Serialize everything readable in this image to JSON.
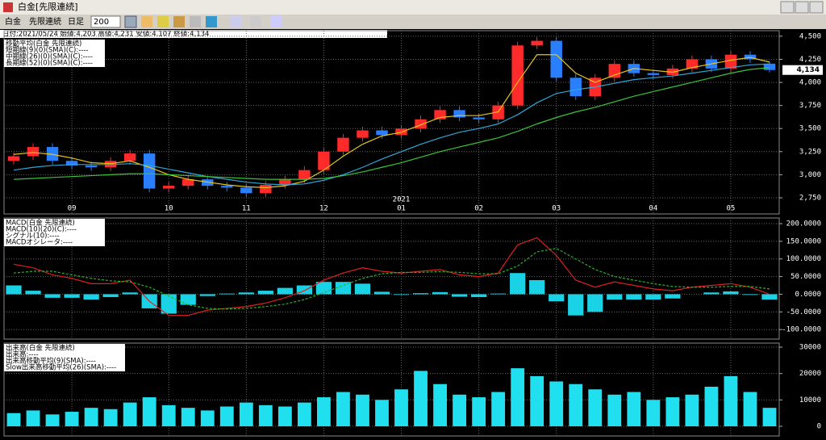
{
  "window": {
    "title": "白金[先限連続]"
  },
  "toolbar": {
    "commodity": "白金",
    "contract": "先限連続",
    "period": "日足",
    "count": "200"
  },
  "info": "日付:2021/05/24 始値:4,203 高値:4,231 安値:4,107 終値:4,134",
  "chart_data": [
    {
      "type": "candlestick",
      "title": "移動平均(白金 先限連続)",
      "categories": [
        null,
        null,
        null,
        "09",
        null,
        null,
        null,
        null,
        "10",
        null,
        null,
        null,
        "11",
        null,
        null,
        null,
        "12",
        null,
        null,
        null,
        "01",
        null,
        null,
        null,
        "02",
        null,
        null,
        null,
        "03",
        null,
        null,
        null,
        null,
        "04",
        null,
        null,
        null,
        "05",
        null,
        null
      ],
      "year_label": "2021",
      "open": [
        3150,
        3200,
        3300,
        3150,
        3100,
        3080,
        3150,
        3230,
        2850,
        2880,
        2950,
        2880,
        2860,
        2800,
        2890,
        2950,
        3050,
        3250,
        3400,
        3480,
        3430,
        3500,
        3600,
        3700,
        3620,
        3600,
        3750,
        4400,
        4450,
        4050,
        3850,
        4050,
        4200,
        4100,
        4080,
        4150,
        4250,
        4150,
        4300,
        4203
      ],
      "high": [
        3240,
        3340,
        3340,
        3190,
        3140,
        3190,
        3270,
        3270,
        2920,
        2990,
        2990,
        2920,
        2900,
        2930,
        2990,
        3090,
        3290,
        3440,
        3520,
        3520,
        3540,
        3640,
        3740,
        3740,
        3660,
        3790,
        4440,
        4490,
        4490,
        4090,
        4090,
        4240,
        4240,
        4140,
        4190,
        4290,
        4290,
        4340,
        4340,
        4231
      ],
      "low": [
        3110,
        3160,
        3110,
        3060,
        3040,
        3040,
        3110,
        2810,
        2810,
        2840,
        2840,
        2820,
        2760,
        2760,
        2850,
        2910,
        3010,
        3210,
        3360,
        3390,
        3390,
        3460,
        3560,
        3580,
        3560,
        3560,
        3710,
        4360,
        4010,
        3810,
        3810,
        4010,
        4060,
        4040,
        4040,
        4110,
        4110,
        4110,
        4210,
        4107
      ],
      "close": [
        3200,
        3300,
        3150,
        3100,
        3080,
        3150,
        3230,
        2850,
        2880,
        2950,
        2880,
        2860,
        2800,
        2890,
        2950,
        3050,
        3250,
        3400,
        3480,
        3430,
        3500,
        3600,
        3700,
        3620,
        3600,
        3750,
        4400,
        4450,
        4050,
        3850,
        4050,
        4200,
        4100,
        4080,
        4150,
        4250,
        4150,
        4300,
        4250,
        4134
      ],
      "up_color": "#ff2a2a",
      "down_color": "#2a7fff",
      "last_price_label": "4,134",
      "series": [
        {
          "name": "短期線(9)(0)(SMA)(C):----",
          "color": "#e6c619",
          "values": [
            3220,
            3240,
            3220,
            3180,
            3130,
            3120,
            3150,
            3080,
            3000,
            2950,
            2920,
            2890,
            2870,
            2860,
            2880,
            2930,
            3050,
            3200,
            3330,
            3420,
            3460,
            3540,
            3620,
            3640,
            3640,
            3680,
            4000,
            4300,
            4300,
            4100,
            4000,
            4080,
            4150,
            4130,
            4110,
            4160,
            4200,
            4240,
            4270,
            4220
          ]
        },
        {
          "name": "中期線(26)(0)(SMA)(C):----",
          "color": "#2fa7d8",
          "values": [
            3050,
            3080,
            3100,
            3110,
            3110,
            3110,
            3120,
            3100,
            3060,
            3020,
            2980,
            2950,
            2920,
            2900,
            2890,
            2900,
            2940,
            3000,
            3080,
            3170,
            3250,
            3330,
            3400,
            3460,
            3500,
            3550,
            3650,
            3780,
            3880,
            3920,
            3950,
            3990,
            4030,
            4050,
            4070,
            4100,
            4130,
            4160,
            4190,
            4200
          ]
        },
        {
          "name": "長期線(52)(0)(SMA)(C):----",
          "color": "#3ac43a",
          "values": [
            2950,
            2960,
            2970,
            2980,
            2990,
            3000,
            3010,
            3010,
            3000,
            2990,
            2980,
            2970,
            2960,
            2950,
            2950,
            2950,
            2960,
            2990,
            3030,
            3080,
            3130,
            3190,
            3250,
            3300,
            3350,
            3400,
            3470,
            3550,
            3620,
            3680,
            3730,
            3790,
            3850,
            3900,
            3950,
            4000,
            4050,
            4100,
            4140,
            4160
          ]
        }
      ],
      "ylim": [
        2575,
        4560
      ],
      "yticks": [
        {
          "value": 2750,
          "label": "2,750"
        },
        {
          "value": 3000,
          "label": "3,000"
        },
        {
          "value": 3250,
          "label": "3,250"
        },
        {
          "value": 3500,
          "label": "3,500"
        },
        {
          "value": 3750,
          "label": "3,750"
        },
        {
          "value": 4000,
          "label": "4,000"
        },
        {
          "value": 4250,
          "label": "4,250"
        },
        {
          "value": 4500,
          "label": "4,500"
        }
      ],
      "grid": true
    },
    {
      "type": "macd",
      "title": "MACD(白金 先限連続)",
      "series": [
        {
          "name": "MACD(10)(20)(C):----",
          "color": "#e02020",
          "values": [
            85,
            75,
            55,
            45,
            30,
            30,
            40,
            -20,
            -60,
            -60,
            -45,
            -40,
            -35,
            -25,
            -10,
            10,
            40,
            60,
            75,
            65,
            60,
            65,
            70,
            55,
            50,
            60,
            140,
            160,
            110,
            40,
            20,
            35,
            25,
            15,
            10,
            20,
            25,
            30,
            20,
            0
          ]
        },
        {
          "name": "シグナル(10):----",
          "color": "#28b428",
          "dashed": true,
          "values": [
            60,
            65,
            65,
            55,
            45,
            38,
            35,
            20,
            -5,
            -30,
            -40,
            -42,
            -40,
            -35,
            -28,
            -15,
            5,
            25,
            45,
            58,
            62,
            62,
            64,
            62,
            58,
            58,
            80,
            120,
            130,
            100,
            70,
            50,
            40,
            30,
            22,
            20,
            20,
            22,
            22,
            15
          ]
        }
      ],
      "histogram": {
        "name": "MACDオシレータ:----",
        "color": "#19d2e6",
        "values": [
          25,
          10,
          -10,
          -10,
          -15,
          -8,
          5,
          -40,
          -55,
          -30,
          -5,
          2,
          5,
          10,
          18,
          25,
          35,
          35,
          30,
          7,
          -2,
          3,
          6,
          -7,
          -8,
          2,
          60,
          40,
          -20,
          -60,
          -50,
          -15,
          -15,
          -15,
          -12,
          0,
          5,
          8,
          -2,
          -15
        ]
      },
      "ylim": [
        -127,
        216
      ],
      "yticks": [
        {
          "value": -100,
          "label": "-100.0000"
        },
        {
          "value": -50,
          "label": "-50.0000"
        },
        {
          "value": 0,
          "label": "0.0000"
        },
        {
          "value": 50,
          "label": "50.0000"
        },
        {
          "value": 100,
          "label": "100.0000"
        },
        {
          "value": 150,
          "label": "150.0000"
        },
        {
          "value": 200,
          "label": "200.0000"
        }
      ],
      "grid": true
    },
    {
      "type": "bar",
      "title": "出来高(白金 先限連続)",
      "series": [
        {
          "name": "出来高:----",
          "color": "#20e0f0",
          "values": [
            5000,
            6000,
            4500,
            5500,
            7000,
            6500,
            9000,
            11000,
            8000,
            7000,
            6000,
            7500,
            9000,
            8000,
            7500,
            9000,
            11000,
            13000,
            12000,
            10000,
            14000,
            21000,
            16000,
            12000,
            11000,
            13000,
            22000,
            19000,
            17000,
            16000,
            14000,
            12000,
            13000,
            10000,
            11000,
            12000,
            15000,
            19000,
            13000,
            7000
          ]
        }
      ],
      "indicator_labels": [
        "出来高移動平均(9)(SMA):----",
        "Slow出来高移動平均(26)(SMA):----"
      ],
      "ylim": [
        -3670,
        31530
      ],
      "yticks": [
        0,
        10000,
        20000,
        30000
      ],
      "grid": true
    }
  ]
}
